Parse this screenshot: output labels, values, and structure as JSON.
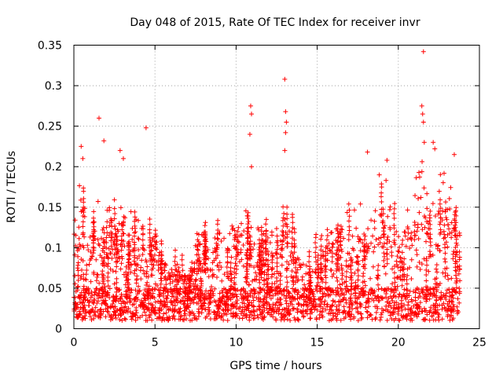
{
  "chart_data": {
    "type": "scatter",
    "title": "Day 048 of 2015, Rate Of TEC Index for receiver invr",
    "xlabel": "GPS time / hours",
    "ylabel": "ROTI / TECUs",
    "xlim": [
      0,
      25
    ],
    "ylim": [
      0,
      0.35
    ],
    "xticks": [
      0,
      5,
      10,
      15,
      20,
      25
    ],
    "xtick_labels": [
      "0",
      "5",
      "10",
      "15",
      "20",
      "25"
    ],
    "yticks": [
      0,
      0.05,
      0.1,
      0.15,
      0.2,
      0.25,
      0.3,
      0.35
    ],
    "ytick_labels": [
      "0",
      "0.05",
      "0.1",
      "0.15",
      "0.2",
      "0.25",
      "0.3",
      "0.35"
    ],
    "grid": true,
    "marker": "plus",
    "color": "#ff0000",
    "x_range_of_data": [
      0,
      23.8
    ],
    "envelope": {
      "hours": [
        0,
        0.5,
        1,
        1.5,
        2,
        2.5,
        3,
        3.5,
        4,
        4.5,
        5,
        5.5,
        6,
        6.5,
        7,
        7.5,
        8,
        8.5,
        9,
        9.5,
        10,
        10.5,
        11,
        11.5,
        12,
        12.5,
        13,
        13.5,
        14,
        14.5,
        15,
        15.5,
        16,
        16.5,
        17,
        17.5,
        18,
        18.5,
        19,
        19.5,
        20,
        20.5,
        21,
        21.5,
        22,
        22.5,
        23,
        23.8
      ],
      "typical_max": [
        0.13,
        0.19,
        0.13,
        0.15,
        0.14,
        0.16,
        0.15,
        0.14,
        0.13,
        0.11,
        0.14,
        0.09,
        0.07,
        0.07,
        0.06,
        0.1,
        0.12,
        0.11,
        0.12,
        0.11,
        0.14,
        0.15,
        0.13,
        0.12,
        0.11,
        0.12,
        0.13,
        0.11,
        0.09,
        0.08,
        0.07,
        0.1,
        0.14,
        0.12,
        0.15,
        0.15,
        0.14,
        0.17,
        0.19,
        0.16,
        0.12,
        0.14,
        0.18,
        0.2,
        0.17,
        0.18,
        0.19,
        0.12
      ]
    },
    "peaks": [
      {
        "x": 0.45,
        "y": 0.225
      },
      {
        "x": 0.55,
        "y": 0.21
      },
      {
        "x": 1.55,
        "y": 0.26
      },
      {
        "x": 1.85,
        "y": 0.232
      },
      {
        "x": 2.85,
        "y": 0.22
      },
      {
        "x": 3.05,
        "y": 0.21
      },
      {
        "x": 4.45,
        "y": 0.248
      },
      {
        "x": 10.9,
        "y": 0.275
      },
      {
        "x": 10.95,
        "y": 0.265
      },
      {
        "x": 10.85,
        "y": 0.24
      },
      {
        "x": 10.95,
        "y": 0.2
      },
      {
        "x": 13.0,
        "y": 0.308
      },
      {
        "x": 13.05,
        "y": 0.268
      },
      {
        "x": 13.1,
        "y": 0.255
      },
      {
        "x": 13.05,
        "y": 0.242
      },
      {
        "x": 13.0,
        "y": 0.22
      },
      {
        "x": 18.1,
        "y": 0.218
      },
      {
        "x": 19.3,
        "y": 0.208
      },
      {
        "x": 21.55,
        "y": 0.342
      },
      {
        "x": 21.45,
        "y": 0.275
      },
      {
        "x": 21.5,
        "y": 0.265
      },
      {
        "x": 21.55,
        "y": 0.255
      },
      {
        "x": 21.6,
        "y": 0.23
      },
      {
        "x": 22.15,
        "y": 0.23
      },
      {
        "x": 22.25,
        "y": 0.222
      },
      {
        "x": 23.45,
        "y": 0.215
      }
    ]
  }
}
